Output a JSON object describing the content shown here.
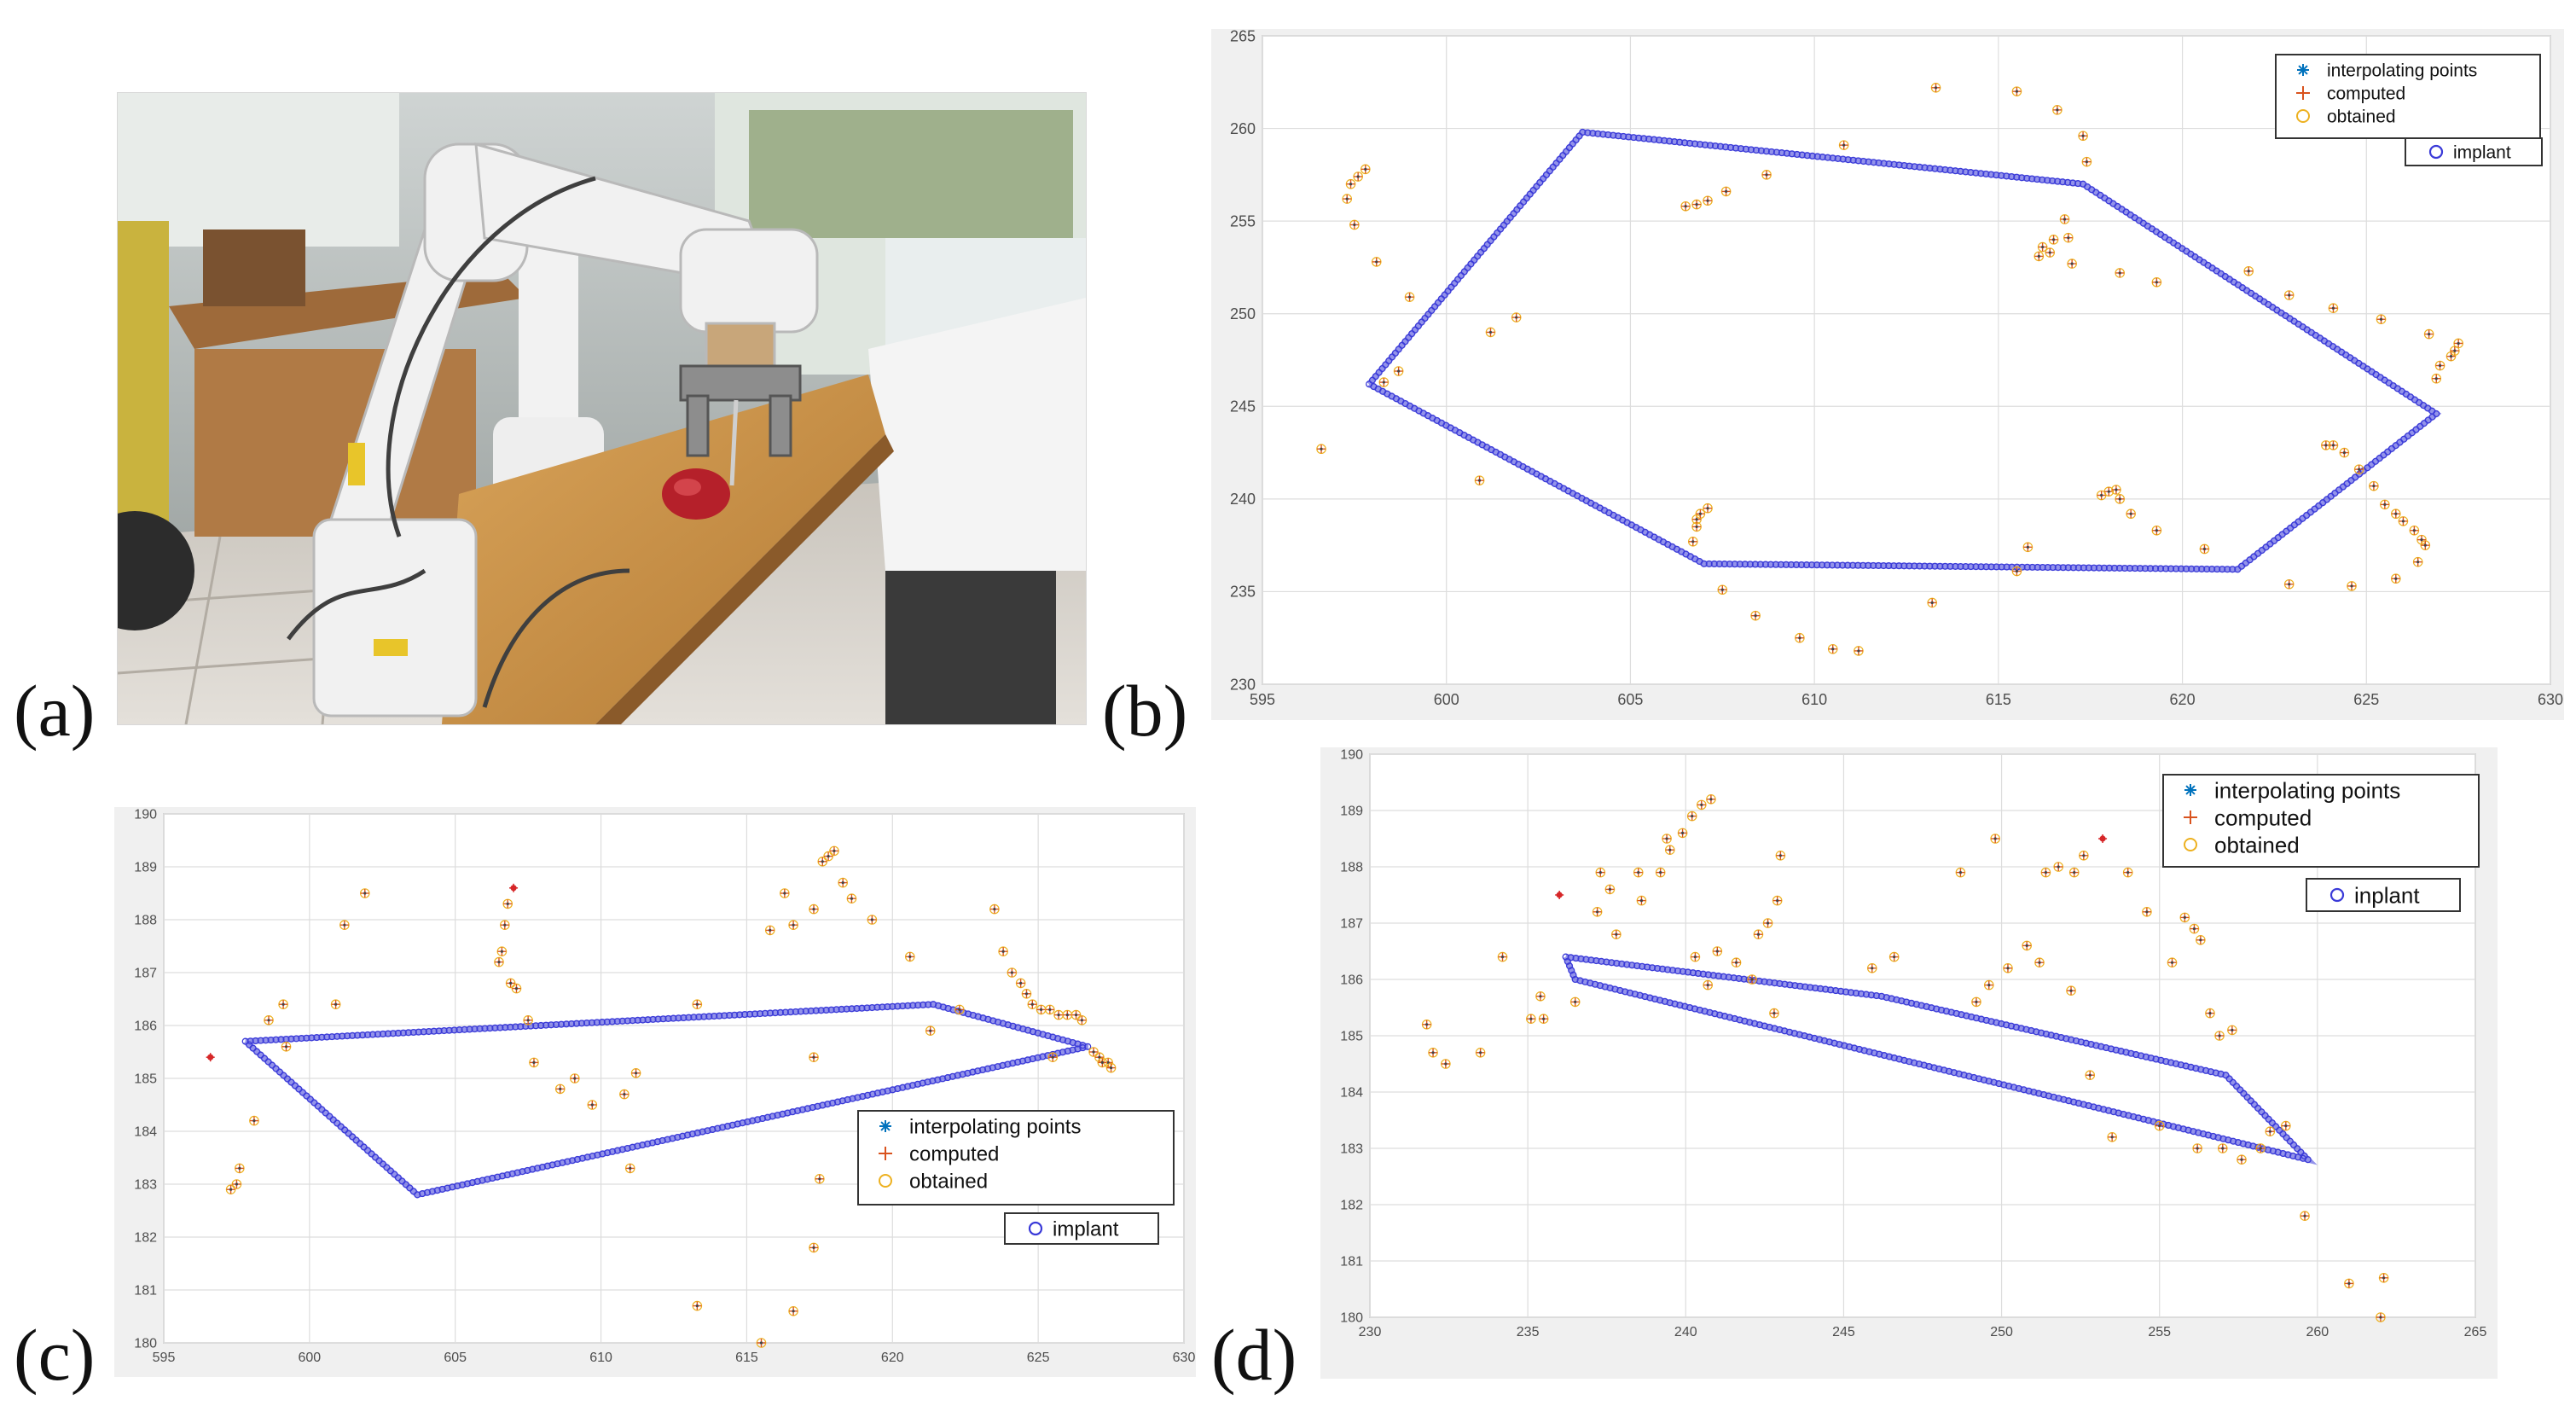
{
  "panel_labels": {
    "a": "(a)",
    "b": "(b)",
    "c": "(c)",
    "d": "(d)"
  },
  "photo": {
    "description_icon": "robot-arm-photo"
  },
  "colors": {
    "implant": "#3a3ad8",
    "computed": "#d9531e",
    "obtained": "#edb120",
    "interpolating": "#0072bd",
    "grid": "#dddddd"
  },
  "chart_data": [
    {
      "type": "scatter",
      "panel": "b",
      "xlim": [
        595,
        630
      ],
      "ylim": [
        230,
        265
      ],
      "xticks": [
        595,
        600,
        605,
        610,
        615,
        620,
        625,
        630
      ],
      "yticks": [
        230,
        235,
        240,
        245,
        250,
        255,
        260,
        265
      ],
      "grid": true,
      "legend_position": "top-right",
      "legend": [
        "interpolating points",
        "computed",
        "obtained"
      ],
      "legend2": "implant",
      "implant_polygon": [
        [
          597.9,
          246.2
        ],
        [
          603.7,
          259.8
        ],
        [
          617.3,
          257.0
        ],
        [
          626.9,
          244.6
        ],
        [
          621.5,
          236.2
        ],
        [
          607.0,
          236.5
        ],
        [
          597.9,
          246.2
        ]
      ],
      "points": [
        [
          596.6,
          242.7
        ],
        [
          597.3,
          256.2
        ],
        [
          597.4,
          257.0
        ],
        [
          597.6,
          257.4
        ],
        [
          597.8,
          257.8
        ],
        [
          597.5,
          254.8
        ],
        [
          598.1,
          252.8
        ],
        [
          599.0,
          250.9
        ],
        [
          598.3,
          246.3
        ],
        [
          598.7,
          246.9
        ],
        [
          600.9,
          241.0
        ],
        [
          601.2,
          249.0
        ],
        [
          601.9,
          249.8
        ],
        [
          606.5,
          255.8
        ],
        [
          606.8,
          255.9
        ],
        [
          607.1,
          256.1
        ],
        [
          607.6,
          256.6
        ],
        [
          608.7,
          257.5
        ],
        [
          610.8,
          259.1
        ],
        [
          606.7,
          237.7
        ],
        [
          606.8,
          238.5
        ],
        [
          606.8,
          238.9
        ],
        [
          606.9,
          239.2
        ],
        [
          607.1,
          239.5
        ],
        [
          607.5,
          235.1
        ],
        [
          608.4,
          233.7
        ],
        [
          609.6,
          232.5
        ],
        [
          610.5,
          231.9
        ],
        [
          611.2,
          231.8
        ],
        [
          613.3,
          262.2
        ],
        [
          615.5,
          262.0
        ],
        [
          616.6,
          261.0
        ],
        [
          617.3,
          259.6
        ],
        [
          617.4,
          258.2
        ],
        [
          616.8,
          255.1
        ],
        [
          616.9,
          254.1
        ],
        [
          616.5,
          254.0
        ],
        [
          616.2,
          253.6
        ],
        [
          616.4,
          253.3
        ],
        [
          616.1,
          253.1
        ],
        [
          617.0,
          252.7
        ],
        [
          618.3,
          252.2
        ],
        [
          619.3,
          251.7
        ],
        [
          613.2,
          234.4
        ],
        [
          615.5,
          236.1
        ],
        [
          615.8,
          237.4
        ],
        [
          617.8,
          240.2
        ],
        [
          618.0,
          240.4
        ],
        [
          618.2,
          240.5
        ],
        [
          618.3,
          240.0
        ],
        [
          618.6,
          239.2
        ],
        [
          619.3,
          238.3
        ],
        [
          620.6,
          237.3
        ],
        [
          621.8,
          252.3
        ],
        [
          622.9,
          251.0
        ],
        [
          624.1,
          250.3
        ],
        [
          625.4,
          249.7
        ],
        [
          626.7,
          248.9
        ],
        [
          627.5,
          248.4
        ],
        [
          627.4,
          248.0
        ],
        [
          627.3,
          247.7
        ],
        [
          627.0,
          247.2
        ],
        [
          626.9,
          246.5
        ],
        [
          622.9,
          235.4
        ],
        [
          623.9,
          242.9
        ],
        [
          624.1,
          242.9
        ],
        [
          624.4,
          242.5
        ],
        [
          624.8,
          241.6
        ],
        [
          625.2,
          240.7
        ],
        [
          625.5,
          239.7
        ],
        [
          625.8,
          239.2
        ],
        [
          626.0,
          238.8
        ],
        [
          626.3,
          238.3
        ],
        [
          626.5,
          237.8
        ],
        [
          626.6,
          237.5
        ],
        [
          626.4,
          236.6
        ],
        [
          625.8,
          235.7
        ],
        [
          624.6,
          235.3
        ]
      ],
      "red_points": []
    },
    {
      "type": "scatter",
      "panel": "c",
      "xlim": [
        595,
        630
      ],
      "ylim": [
        180,
        190
      ],
      "xticks": [
        595,
        600,
        605,
        610,
        615,
        620,
        625,
        630
      ],
      "yticks": [
        180,
        181,
        182,
        183,
        184,
        185,
        186,
        187,
        188,
        189,
        190
      ],
      "grid": true,
      "legend_position": "bottom-right",
      "legend": [
        "interpolating points",
        "computed",
        "obtained"
      ],
      "legend2": "implant",
      "implant_polygon": [
        [
          597.8,
          185.7
        ],
        [
          621.4,
          186.4
        ],
        [
          626.7,
          185.6
        ],
        [
          603.7,
          182.8
        ],
        [
          597.8,
          185.7
        ]
      ],
      "points": [
        [
          597.3,
          182.9
        ],
        [
          597.5,
          183.0
        ],
        [
          597.6,
          183.3
        ],
        [
          598.1,
          184.2
        ],
        [
          598.6,
          186.1
        ],
        [
          599.1,
          186.4
        ],
        [
          599.2,
          185.6
        ],
        [
          600.9,
          186.4
        ],
        [
          601.2,
          187.9
        ],
        [
          601.9,
          188.5
        ],
        [
          606.5,
          187.2
        ],
        [
          606.6,
          187.4
        ],
        [
          606.7,
          187.9
        ],
        [
          606.8,
          188.3
        ],
        [
          606.9,
          186.8
        ],
        [
          607.1,
          186.7
        ],
        [
          607.5,
          186.1
        ],
        [
          607.7,
          185.3
        ],
        [
          608.6,
          184.8
        ],
        [
          609.1,
          185.0
        ],
        [
          609.7,
          184.5
        ],
        [
          610.8,
          184.7
        ],
        [
          611.2,
          185.1
        ],
        [
          611.0,
          183.3
        ],
        [
          613.3,
          186.4
        ],
        [
          613.3,
          180.7
        ],
        [
          615.5,
          180.0
        ],
        [
          615.8,
          187.8
        ],
        [
          616.3,
          188.5
        ],
        [
          616.6,
          187.9
        ],
        [
          617.3,
          188.2
        ],
        [
          617.6,
          189.1
        ],
        [
          617.8,
          189.2
        ],
        [
          618.0,
          189.3
        ],
        [
          618.3,
          188.7
        ],
        [
          618.6,
          188.4
        ],
        [
          619.3,
          188.0
        ],
        [
          617.5,
          183.1
        ],
        [
          617.3,
          181.8
        ],
        [
          616.6,
          180.6
        ],
        [
          617.3,
          185.4
        ],
        [
          620.6,
          187.3
        ],
        [
          621.3,
          185.9
        ],
        [
          622.3,
          186.3
        ],
        [
          623.5,
          188.2
        ],
        [
          623.8,
          187.4
        ],
        [
          624.1,
          187.0
        ],
        [
          624.4,
          186.8
        ],
        [
          624.6,
          186.6
        ],
        [
          624.8,
          186.4
        ],
        [
          625.1,
          186.3
        ],
        [
          625.4,
          186.3
        ],
        [
          625.7,
          186.2
        ],
        [
          626.0,
          186.2
        ],
        [
          626.3,
          186.2
        ],
        [
          626.5,
          186.1
        ],
        [
          625.5,
          185.4
        ],
        [
          627.1,
          185.4
        ],
        [
          627.4,
          185.3
        ],
        [
          627.5,
          185.2
        ],
        [
          627.2,
          185.3
        ],
        [
          626.9,
          185.5
        ]
      ],
      "red_points": [
        [
          596.6,
          185.4
        ],
        [
          607.0,
          188.6
        ]
      ]
    },
    {
      "type": "scatter",
      "panel": "d",
      "xlim": [
        230,
        265
      ],
      "ylim": [
        180,
        190
      ],
      "xticks": [
        230,
        235,
        240,
        245,
        250,
        255,
        260,
        265
      ],
      "yticks": [
        180,
        181,
        182,
        183,
        184,
        185,
        186,
        187,
        188,
        189,
        190
      ],
      "grid": true,
      "legend_position": "top-right",
      "legend": [
        "interpolating points",
        "computed",
        "obtained"
      ],
      "legend2": "inplant",
      "implant_polygon": [
        [
          236.2,
          186.4
        ],
        [
          246.2,
          185.7
        ],
        [
          257.1,
          184.3
        ],
        [
          259.7,
          182.8
        ],
        [
          236.5,
          186.0
        ],
        [
          236.2,
          186.4
        ]
      ],
      "points": [
        [
          231.8,
          185.2
        ],
        [
          232.0,
          184.7
        ],
        [
          232.4,
          184.5
        ],
        [
          233.5,
          184.7
        ],
        [
          234.2,
          186.4
        ],
        [
          235.1,
          185.3
        ],
        [
          235.5,
          185.3
        ],
        [
          235.4,
          185.7
        ],
        [
          236.5,
          185.6
        ],
        [
          237.2,
          187.2
        ],
        [
          237.3,
          187.9
        ],
        [
          237.6,
          187.6
        ],
        [
          237.8,
          186.8
        ],
        [
          238.5,
          187.9
        ],
        [
          238.6,
          187.4
        ],
        [
          239.2,
          187.9
        ],
        [
          239.5,
          188.3
        ],
        [
          239.4,
          188.5
        ],
        [
          239.9,
          188.6
        ],
        [
          240.2,
          188.9
        ],
        [
          240.5,
          189.1
        ],
        [
          240.8,
          189.2
        ],
        [
          240.3,
          186.4
        ],
        [
          240.7,
          185.9
        ],
        [
          241.0,
          186.5
        ],
        [
          241.6,
          186.3
        ],
        [
          242.1,
          186.0
        ],
        [
          242.3,
          186.8
        ],
        [
          242.6,
          187.0
        ],
        [
          242.9,
          187.4
        ],
        [
          243.0,
          188.2
        ],
        [
          242.8,
          185.4
        ],
        [
          245.9,
          186.2
        ],
        [
          246.6,
          186.4
        ],
        [
          248.7,
          187.9
        ],
        [
          249.2,
          185.6
        ],
        [
          249.6,
          185.9
        ],
        [
          249.8,
          188.5
        ],
        [
          250.2,
          186.2
        ],
        [
          250.8,
          186.6
        ],
        [
          251.2,
          186.3
        ],
        [
          251.4,
          187.9
        ],
        [
          251.8,
          188.0
        ],
        [
          252.2,
          185.8
        ],
        [
          252.3,
          187.9
        ],
        [
          252.6,
          188.2
        ],
        [
          252.8,
          184.3
        ],
        [
          253.5,
          183.2
        ],
        [
          254.0,
          187.9
        ],
        [
          254.6,
          187.2
        ],
        [
          255.0,
          183.4
        ],
        [
          255.4,
          186.3
        ],
        [
          255.8,
          187.1
        ],
        [
          256.1,
          186.9
        ],
        [
          256.3,
          186.7
        ],
        [
          256.6,
          185.4
        ],
        [
          256.2,
          183.0
        ],
        [
          256.9,
          185.0
        ],
        [
          257.0,
          183.0
        ],
        [
          257.3,
          185.1
        ],
        [
          257.6,
          182.8
        ],
        [
          258.2,
          183.0
        ],
        [
          258.5,
          183.3
        ],
        [
          259.0,
          183.4
        ],
        [
          259.6,
          181.8
        ],
        [
          261.0,
          180.6
        ],
        [
          262.1,
          180.7
        ],
        [
          262.0,
          180.0
        ]
      ],
      "red_points": [
        [
          236.0,
          187.5
        ],
        [
          253.2,
          188.5
        ]
      ]
    }
  ]
}
